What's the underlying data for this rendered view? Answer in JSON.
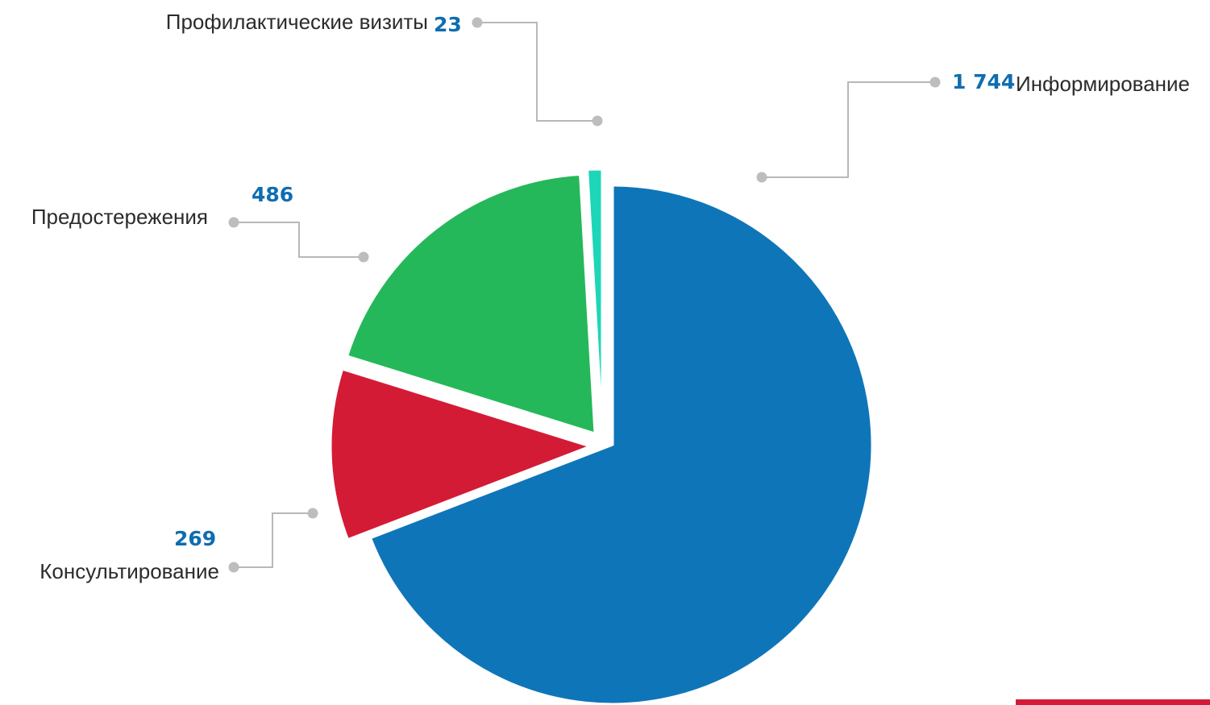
{
  "chart_data": {
    "type": "pie",
    "title": "",
    "categories": [
      "Информирование",
      "Консультирование",
      "Предостережения",
      "Профилактические визиты"
    ],
    "values": [
      1744,
      269,
      486,
      23
    ],
    "value_labels": [
      "1 744",
      "269",
      "486",
      "23"
    ],
    "colors": [
      "#0f75b9",
      "#d41b35",
      "#25b85a",
      "#1dd6b8"
    ],
    "start_angle_deg": 0,
    "direction": "clockwise",
    "exploded_slices": "all",
    "legend": "none",
    "label_value_color": "#0f6db0",
    "label_text_color": "#2b2b2b",
    "leader_line_color": "#b8b8b8"
  },
  "decoration": {
    "corner_bar_color": "#d41b35"
  }
}
